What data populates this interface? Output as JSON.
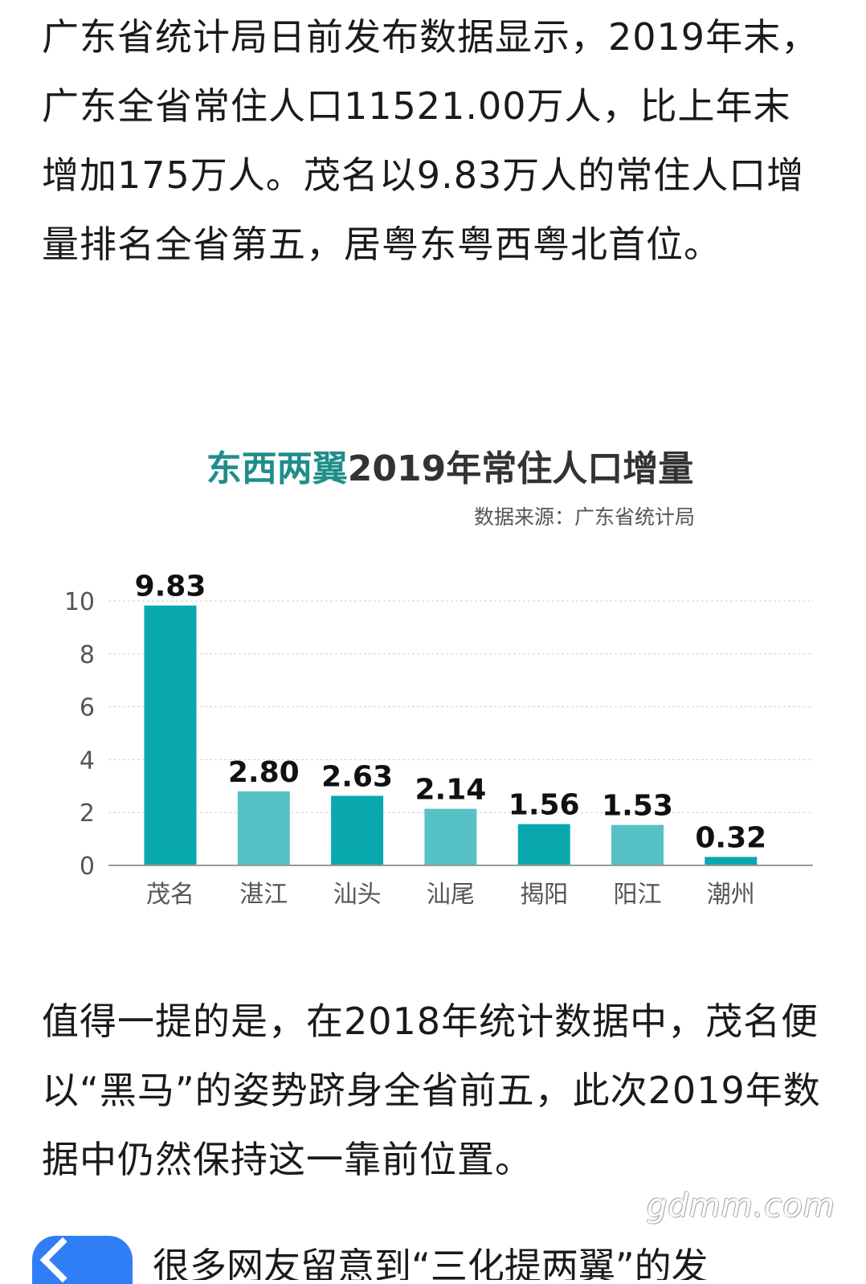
{
  "article": {
    "paragraph1": "广东省统计局日前发布数据显示，2019年末，广东全省常住人口11521.00万人，比上年末增加175万人。茂名以9.83万人的常住人口增量排名全省第五，居粤东粤西粤北首位。",
    "paragraph2": "值得一提的是，在2018年统计数据中，茂名便以“黑马”的姿势跻身全省前五，此次2019年数据中仍然保持这一靠前位置。"
  },
  "chart_data": {
    "type": "bar",
    "title_part1": "东西两翼",
    "title_part2": "2019年常住人口增量",
    "source": "数据来源：广东省统计局",
    "categories": [
      "茂名",
      "湛江",
      "汕头",
      "汕尾",
      "揭阳",
      "阳江",
      "潮州"
    ],
    "values": [
      9.83,
      2.8,
      2.63,
      2.14,
      1.56,
      1.53,
      0.32
    ],
    "value_labels": [
      "9.83",
      "2.80",
      "2.63",
      "2.14",
      "1.56",
      "1.53",
      "0.32"
    ],
    "bar_colors": [
      "#08a8ae",
      "#56c2c6",
      "#08a8ae",
      "#56c2c6",
      "#08a8ae",
      "#56c2c6",
      "#08a8ae"
    ],
    "ylim": [
      0,
      10
    ],
    "yticks": [
      "0",
      "2",
      "4",
      "6",
      "8",
      "10"
    ],
    "grid": true,
    "xlabel": "",
    "ylabel": ""
  },
  "watermark": "gdmm.com",
  "cut_line": "很多网友留意到“三化提两翼”的发"
}
